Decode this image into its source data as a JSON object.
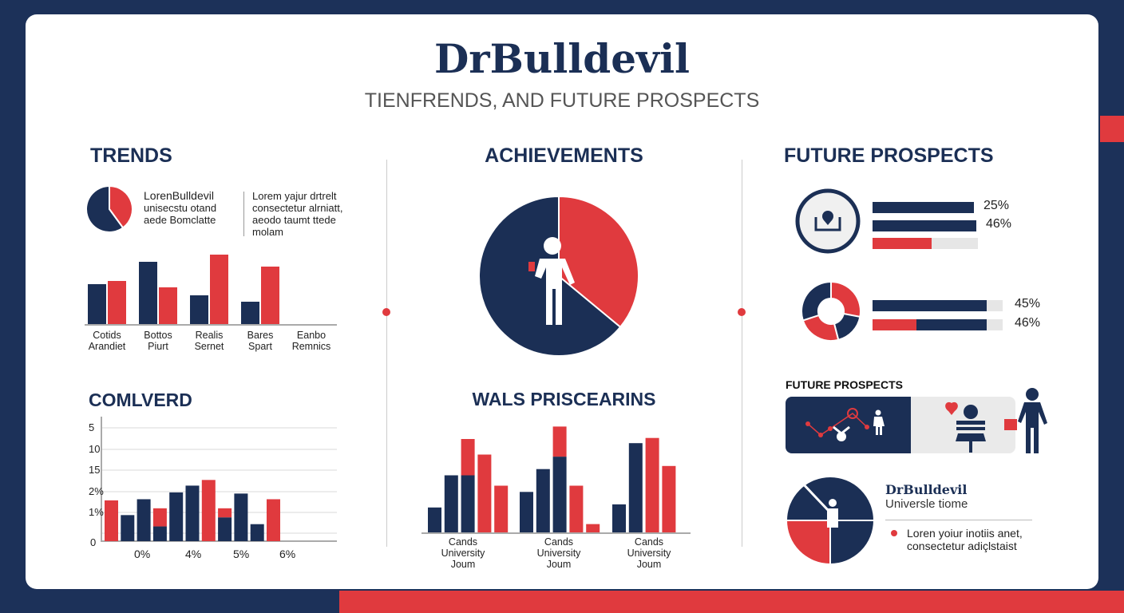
{
  "header": {
    "title": "DrBulldevil",
    "subtitle": "TIENFRENDS, AND FUTURE PROSPECTS"
  },
  "colors": {
    "navy": "#1b2f55",
    "red": "#e03a3e",
    "frame": "#1c3159"
  },
  "trends": {
    "heading": "TRENDS",
    "intro_title": "LorenBulldevil",
    "intro_lines": [
      "unisecstu otand",
      "aede Bomclatte"
    ],
    "side_lines": [
      "Lorem yajur drtrelt",
      "consectetur alrniatt,",
      "aeodo taumt ttede",
      "molam"
    ]
  },
  "comlverd": {
    "heading": "COMLVERD"
  },
  "achievements": {
    "heading": "ACHIEVEMENTS",
    "icon": "person-icon"
  },
  "wals": {
    "heading": "WALS PRISCEARINS"
  },
  "future": {
    "heading": "FUTURE PROSPECTS",
    "icons": [
      "certificate-icon",
      "donut-icon"
    ],
    "progress": [
      {
        "label": "25%",
        "fill": 1.0,
        "color": "#1b2f55"
      },
      {
        "label": "46%",
        "fill": 1.0,
        "color": "#1b2f55"
      },
      {
        "label": "",
        "fill": 0.56,
        "color": "#e03a3e"
      },
      {
        "label": "45%",
        "fill": 0.88,
        "color": "#1b2f55"
      },
      {
        "label": "46%",
        "fill": 0.88,
        "color": "#1b2f55",
        "red_part": 0.34
      }
    ],
    "banner_title": "FUTURE PROSPECTS",
    "banner_icons": [
      "network-chart-icon",
      "person-icon",
      "heart-icon",
      "podium-person-icon",
      "person-with-bag-icon"
    ],
    "profile_title": "DrBulldevil",
    "profile_sub": "Universle tiome",
    "bullet_lines": [
      "Loren yoiur inotiis anet,",
      "consectetur adiçlstaist"
    ]
  },
  "chart_data": [
    {
      "type": "pie",
      "id": "trends-pie",
      "slices": [
        {
          "color": "#e03a3e",
          "value": 40
        },
        {
          "color": "#1b2f55",
          "value": 60
        }
      ]
    },
    {
      "type": "bar",
      "id": "trends-bars",
      "categories": [
        "Cotids Arandiet",
        "Bottos Piurt",
        "Realis Sernet",
        "Bares Spart",
        "Eanbo Remnics"
      ],
      "series": [
        {
          "color": "#1b2f55",
          "values": [
            51,
            79,
            37,
            29,
            null
          ]
        },
        {
          "color": "#e03a3e",
          "values": [
            55,
            47,
            88,
            73,
            null
          ]
        }
      ],
      "ylim": [
        0,
        100
      ]
    },
    {
      "type": "bar",
      "id": "comlverd-bars",
      "yticks": [
        "5",
        "10",
        "15",
        "2%",
        "1%",
        "0"
      ],
      "xticks": [
        "0%",
        "4%",
        "5%",
        "6%"
      ],
      "grid": true,
      "ylim": [
        0,
        100
      ],
      "bars": [
        {
          "red": 36
        },
        {
          "navy": 23
        },
        {
          "navy": 37
        },
        {
          "navy": 13,
          "red": 16
        },
        {
          "navy": 43
        },
        {
          "navy": 49
        },
        {
          "red": 54
        },
        {
          "navy": 21,
          "red": 8
        },
        {
          "navy": 42
        },
        {
          "navy": 15
        },
        {
          "red": 37
        }
      ]
    },
    {
      "type": "pie",
      "id": "achievements-pie",
      "slices": [
        {
          "color": "#e03a3e",
          "value": 36
        },
        {
          "color": "#1b2f55",
          "value": 64
        }
      ]
    },
    {
      "type": "bar",
      "id": "wals-bars",
      "categories": [
        "Cands University Joum",
        "Cands University Joum",
        "Cands University Joum"
      ],
      "ylim": [
        0,
        100
      ],
      "groups": [
        [
          {
            "navy": 24
          },
          {
            "navy": 55
          },
          {
            "red": 35,
            "navy": 55
          },
          {
            "red": 75
          },
          {
            "red": 45
          }
        ],
        [
          {
            "navy": 39
          },
          {
            "navy": 61
          },
          {
            "red": 29,
            "navy": 73
          },
          {
            "red": 45
          },
          {
            "red": 8
          }
        ],
        [
          {
            "navy": 27
          },
          {
            "navy": 86
          },
          {
            "red": 91
          },
          {
            "red": 64
          }
        ]
      ]
    },
    {
      "type": "pie",
      "id": "future-donut",
      "donut": true,
      "slices": [
        {
          "color": "#e03a3e",
          "value": 28
        },
        {
          "color": "#1b2f55",
          "value": 18
        },
        {
          "color": "#e03a3e",
          "value": 24
        },
        {
          "color": "#1b2f55",
          "value": 30
        }
      ]
    },
    {
      "type": "pie",
      "id": "profile-pie",
      "slices": [
        {
          "color": "#1b2f55",
          "value": 25
        },
        {
          "color": "#e03a3e",
          "value": 25
        },
        {
          "color": "#1b2f55",
          "value": 50
        }
      ],
      "start_deg": 90
    }
  ]
}
